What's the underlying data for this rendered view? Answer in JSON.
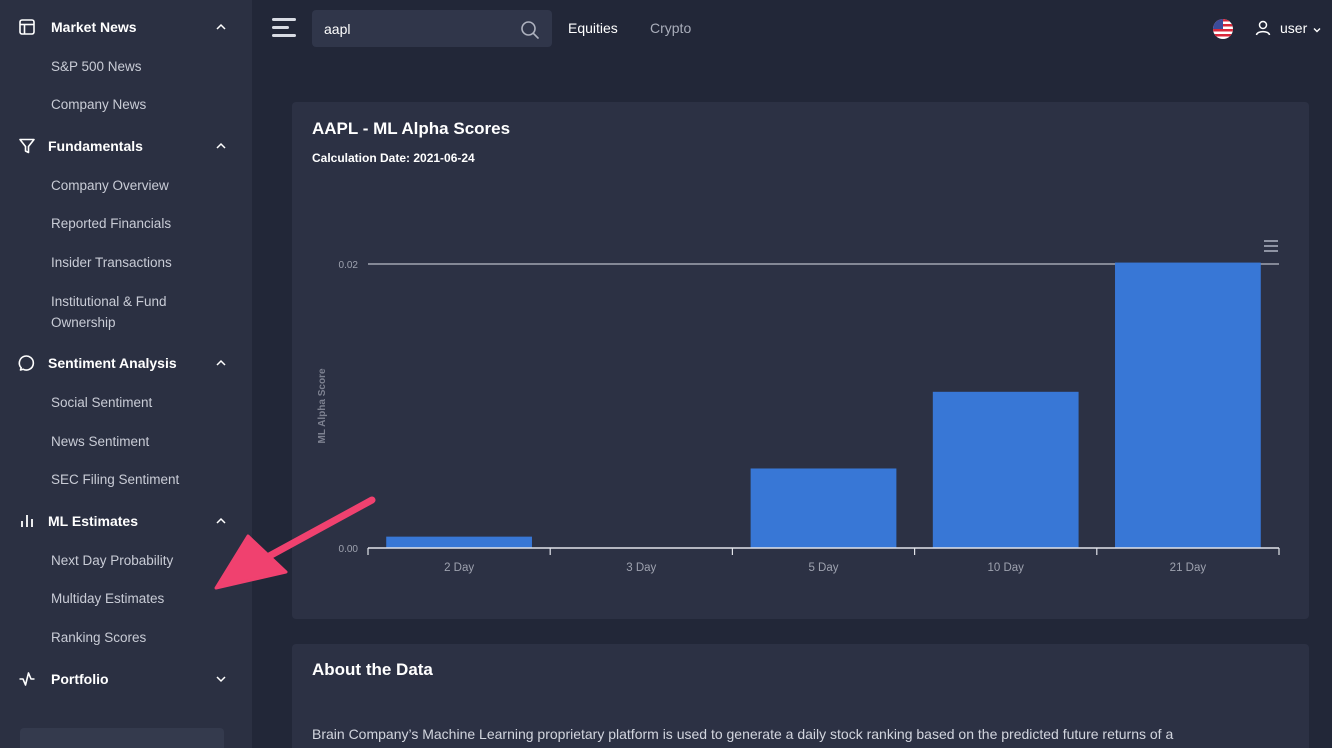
{
  "sidebar": {
    "groups": [
      {
        "label": "Market News",
        "icon": "layout-icon",
        "expanded": true,
        "items": [
          "S&P 500 News",
          "Company News"
        ]
      },
      {
        "label": "Fundamentals",
        "icon": "filter-icon",
        "expanded": true,
        "items": [
          "Company Overview",
          "Reported Financials",
          "Insider Transactions",
          "Institutional & Fund Ownership"
        ]
      },
      {
        "label": "Sentiment Analysis",
        "icon": "message-circle-icon",
        "expanded": true,
        "items": [
          "Social Sentiment",
          "News Sentiment",
          "SEC Filing Sentiment"
        ]
      },
      {
        "label": "ML Estimates",
        "icon": "bar-chart-icon",
        "expanded": true,
        "items": [
          "Next Day Probability",
          "Multiday Estimates",
          "Ranking Scores"
        ]
      },
      {
        "label": "Portfolio",
        "icon": "activity-icon",
        "expanded": false,
        "items": []
      }
    ]
  },
  "topbar": {
    "search_value": "aapl",
    "nav": [
      "Equities",
      "Crypto"
    ],
    "user_label": "user"
  },
  "chart_card": {
    "title": "AAPL - ML Alpha Scores",
    "calc_date": "Calculation Date: 2021-06-24"
  },
  "chart_data": {
    "type": "bar",
    "title": "",
    "xlabel": "",
    "ylabel": "ML Alpha Score",
    "categories": [
      "2 Day",
      "3 Day",
      "5 Day",
      "10 Day",
      "21 Day"
    ],
    "values": [
      0.0008,
      0.0,
      0.0056,
      0.011,
      0.0201
    ],
    "ylim": [
      0,
      0.02
    ],
    "yticks": [
      "0.00",
      "0.02"
    ],
    "grid": true,
    "color": "#3877d6"
  },
  "about_card": {
    "title": "About the Data",
    "text": "Brain Company’s Machine Learning proprietary platform is used to generate a daily stock ranking based on the predicted future returns of a"
  },
  "colors": {
    "background": "#222738",
    "sidebar": "#2b3042",
    "card": "#2c3144",
    "bar": "#3877d6",
    "annotation_arrow": "#f0416f"
  }
}
